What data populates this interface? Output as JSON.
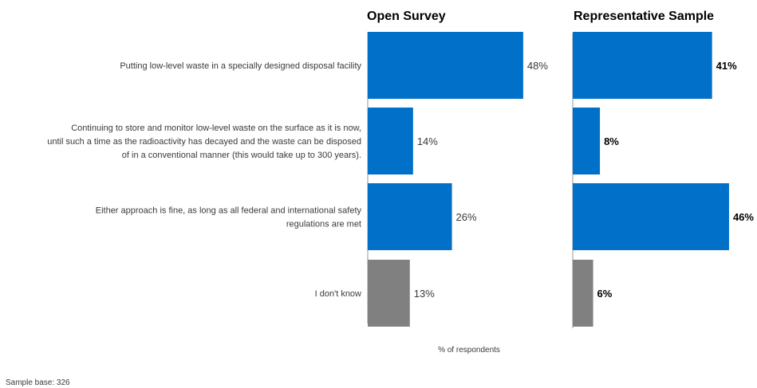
{
  "chart_data": {
    "type": "bar",
    "orientation": "horizontal",
    "panels": [
      "Open Survey",
      "Representative Sample"
    ],
    "categories": [
      [
        "Putting low-level waste in a specially designed disposal facility"
      ],
      [
        "Continuing to store and monitor low-level waste on the surface as it is now,",
        "until such a time as the radioactivity has decayed and the waste can be disposed",
        "of in a conventional manner (this would take up to 300 years)."
      ],
      [
        "Either approach is fine, as long as all federal and international safety",
        "regulations are met"
      ],
      [
        "I don't know"
      ]
    ],
    "series": [
      {
        "name": "Open Survey",
        "values": [
          48,
          14,
          26,
          13
        ],
        "labels": [
          "48%",
          "14%",
          "26%",
          "13%"
        ]
      },
      {
        "name": "Representative Sample",
        "values": [
          41,
          8,
          46,
          6
        ],
        "labels": [
          "41%",
          "8%",
          "46%",
          "6%"
        ]
      }
    ],
    "bar_colors": [
      "#0070c9",
      "#0070c9",
      "#0070c9",
      "#808080"
    ],
    "xlabel": "% of respondents",
    "footnote": "Sample base: 326",
    "grid": false
  }
}
